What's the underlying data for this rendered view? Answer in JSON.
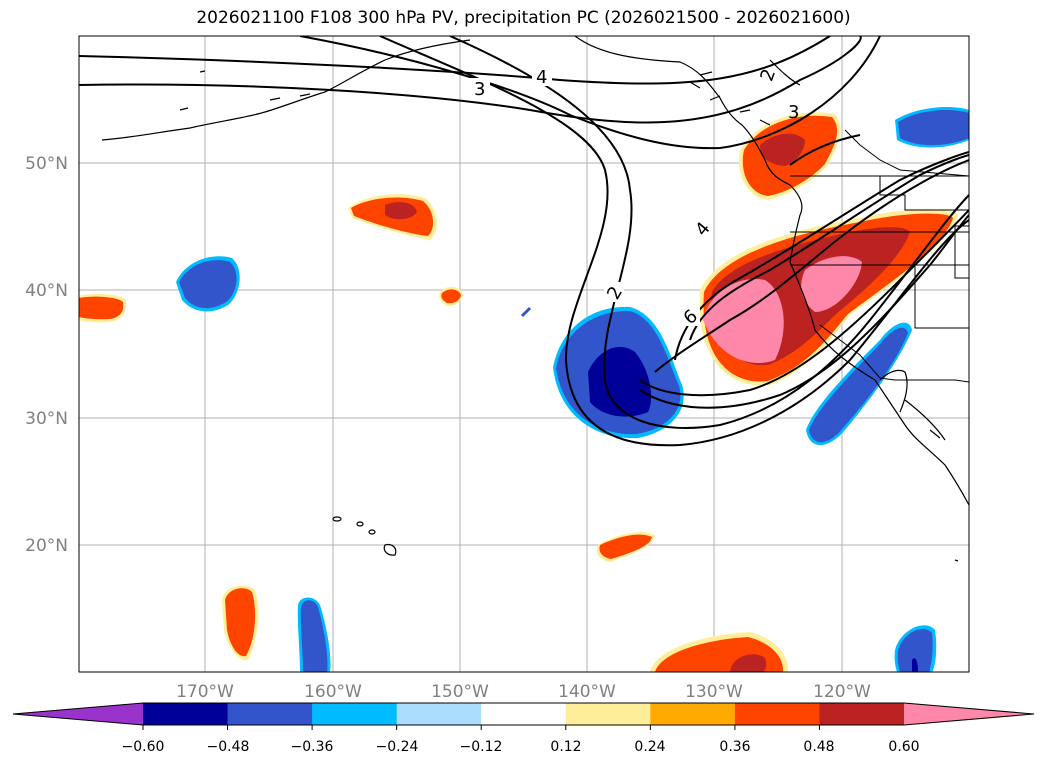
{
  "title": "2026021100 F108 300 hPa PV, precipitation PC (2026021500 - 2026021600)",
  "map": {
    "lat_labels": [
      "50°N",
      "40°N",
      "30°N",
      "20°N"
    ],
    "lon_labels": [
      "170°W",
      "160°W",
      "150°W",
      "140°W",
      "130°W",
      "120°W"
    ],
    "label_color": "#808080",
    "contour_labels": [
      "2",
      "3",
      "4",
      "4",
      "6",
      "2",
      "3"
    ]
  },
  "colorbar": {
    "colors": [
      "#9933cc",
      "#000099",
      "#3355cc",
      "#00bbff",
      "#aaddff",
      "#ffffff",
      "#ffee99",
      "#ffaa00",
      "#ff4400",
      "#bb2222",
      "#ff88aa"
    ],
    "tick_labels": [
      "−0.60",
      "−0.48",
      "−0.36",
      "−0.24",
      "−0.12",
      "0.12",
      "0.24",
      "0.36",
      "0.48",
      "0.60"
    ]
  }
}
